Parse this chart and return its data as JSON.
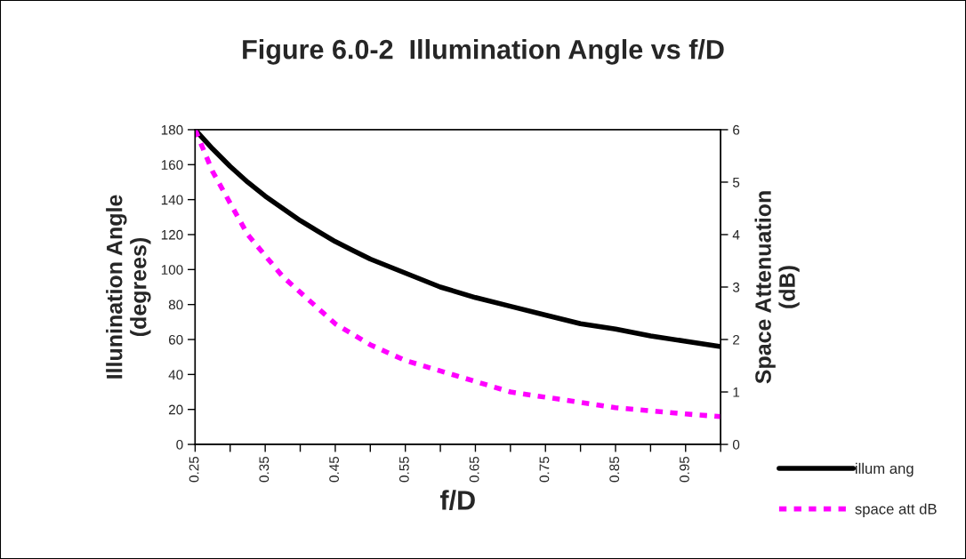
{
  "chart_data": {
    "type": "line",
    "title": "Figure 6.0-2  Illumination Angle vs f/D",
    "xlabel": "f/D",
    "ylabel": "Illunination Angle\n(degrees)",
    "y2label": "Space Attenuation\n(dB)",
    "x": [
      0.25,
      0.275,
      0.3,
      0.325,
      0.35,
      0.375,
      0.4,
      0.425,
      0.45,
      0.475,
      0.5,
      0.55,
      0.6,
      0.65,
      0.7,
      0.75,
      0.8,
      0.85,
      0.9,
      0.95,
      1.0
    ],
    "series": [
      {
        "name": "illum ang",
        "color": "#000000",
        "line_style": "solid",
        "values": [
          180,
          169,
          159,
          150,
          142,
          135,
          128,
          122,
          116,
          111,
          106,
          98,
          90,
          84,
          79,
          74,
          69,
          66,
          62,
          59,
          56
        ]
      },
      {
        "name": "space att dB",
        "color": "#ff00ff",
        "line_style": "dashed",
        "axis": "y2",
        "values": [
          6.0,
          5.2,
          4.6,
          4.0,
          3.6,
          3.2,
          2.9,
          2.6,
          2.3,
          2.1,
          1.9,
          1.6,
          1.4,
          1.2,
          1.0,
          0.9,
          0.8,
          0.7,
          0.64,
          0.58,
          0.53
        ]
      }
    ],
    "xlim": [
      0.25,
      1.0
    ],
    "xticks": [
      0.25,
      {
        "value": 0.3,
        "label": null
      },
      0.35,
      {
        "value": 0.4,
        "label": null
      },
      0.45,
      {
        "value": 0.5,
        "label": null
      },
      0.55,
      {
        "value": 0.6,
        "label": null
      },
      0.65,
      {
        "value": 0.7,
        "label": null
      },
      0.75,
      {
        "value": 0.8,
        "label": null
      },
      0.85,
      {
        "value": 0.9,
        "label": null
      },
      0.95,
      {
        "value": 1.0,
        "label": null
      }
    ],
    "ylim": [
      0,
      180
    ],
    "yticks": [
      0,
      20,
      40,
      60,
      80,
      100,
      120,
      140,
      160,
      180
    ],
    "y2lim": [
      0,
      6
    ],
    "y2ticks": [
      0,
      1,
      2,
      3,
      4,
      5,
      6
    ],
    "grid": false,
    "legend": "right",
    "marker": "none"
  }
}
